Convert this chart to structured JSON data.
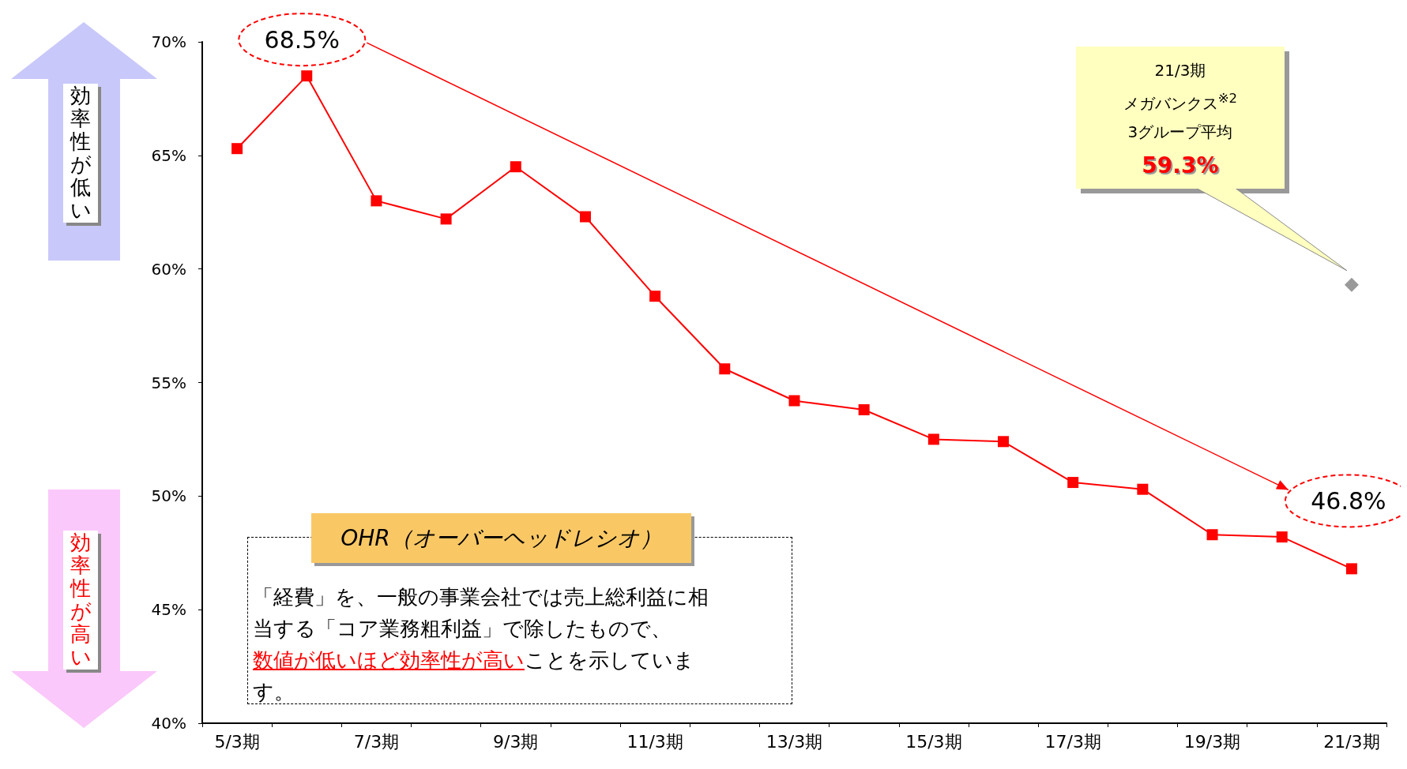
{
  "chart_data": {
    "type": "line",
    "categories": [
      "5/3期",
      null,
      "7/3期",
      null,
      "9/3期",
      null,
      "11/3期",
      null,
      "13/3期",
      null,
      "15/3期",
      null,
      "17/3期",
      null,
      "19/3期",
      null,
      "21/3期"
    ],
    "series": [
      {
        "color": "#ff0000",
        "marker": "square",
        "values": [
          65.3,
          68.5,
          63.0,
          62.2,
          64.5,
          62.3,
          58.8,
          55.6,
          54.2,
          53.8,
          52.5,
          52.4,
          50.6,
          50.3,
          48.3,
          48.2,
          46.8
        ]
      },
      {
        "type": "scatter",
        "color": "#808080",
        "marker": "diamond",
        "values": [
          null,
          null,
          null,
          null,
          null,
          null,
          null,
          null,
          null,
          null,
          null,
          null,
          null,
          null,
          null,
          null,
          59.3
        ]
      }
    ],
    "ylim": [
      40,
      70
    ],
    "yticks": [
      {
        "value": 40,
        "label": "40%"
      },
      {
        "value": 45,
        "label": "45%"
      },
      {
        "value": 50,
        "label": "50%"
      },
      {
        "value": 55,
        "label": "55%"
      },
      {
        "value": 60,
        "label": "60%"
      },
      {
        "value": 65,
        "label": "65%"
      },
      {
        "value": 70,
        "label": "70%"
      }
    ],
    "grid": false,
    "annotations": [
      {
        "text": "68.5%",
        "y": 68.5
      },
      {
        "text": "46.8%",
        "x": "21/3期",
        "y": 46.8
      },
      "59.3%",
      "21/3期",
      "メガバンクス$^{※2}$",
      "3グループ平均",
      "効率性が低い",
      "効率性が高い",
      "OHR（オーバーヘッドレシオ）",
      "「経費」を、一般の事業会社では売上総利益に相当する「コア業務粗利益」で除したもので、",
      "数値が低いほど効率性が高い",
      "ことを示しています。"
    ]
  }
}
